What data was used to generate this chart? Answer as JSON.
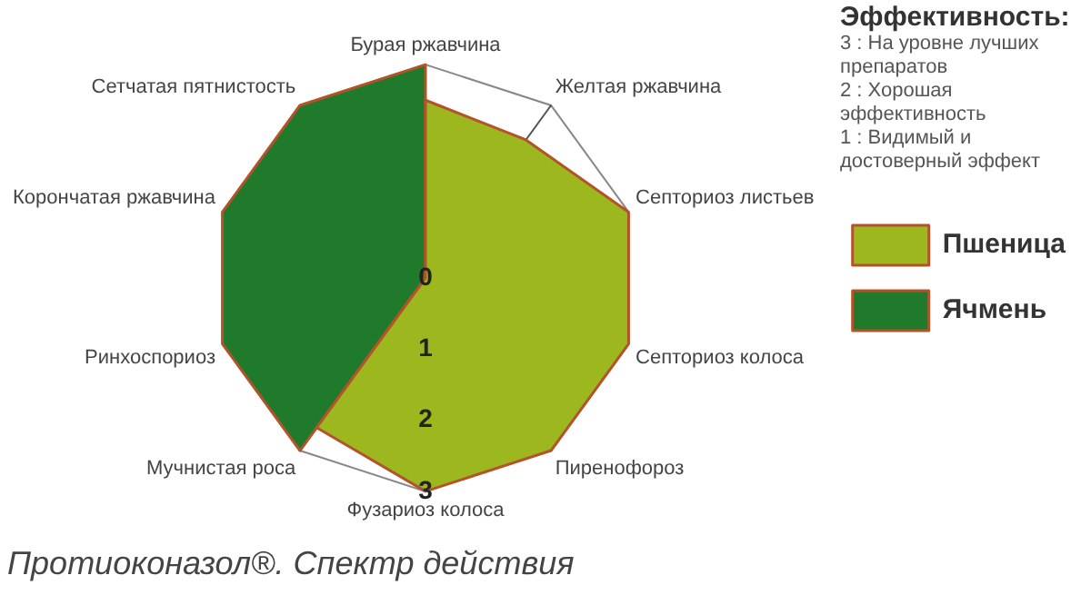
{
  "chart_data": {
    "type": "radar",
    "title": "Протиоконазол®. Спектр действия",
    "categories": [
      "Бурая ржавчина",
      "Желтая ржавчина",
      "Септориоз листьев",
      "Септориоз колоса",
      "Пиренофороз",
      "Фузариоз колоса",
      "Мучнистая роса",
      "Ринхоспориоз",
      "Корончатая ржавчина",
      "Сетчатая пятнистость"
    ],
    "series": [
      {
        "name": "Пшеница",
        "color": "#9cb81e",
        "values": [
          2.5,
          2.4,
          3,
          3,
          3,
          3,
          2.6,
          0,
          0,
          0
        ]
      },
      {
        "name": "Ячмень",
        "color": "#1f7a2c",
        "values": [
          3,
          0,
          0,
          0,
          0,
          0,
          3,
          3,
          3,
          3
        ]
      }
    ],
    "ylim": [
      0,
      3
    ],
    "yticks": [
      0,
      1,
      2,
      3
    ],
    "legend": "right",
    "marker": "none",
    "annotations": [
      "Эффективность:",
      "3 : На уровне лучших препаратов",
      "2 : Хорошая эффективность",
      "1 : Видимый и достоверный эффект"
    ]
  }
}
